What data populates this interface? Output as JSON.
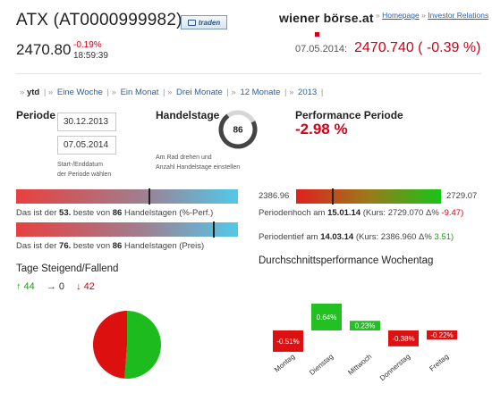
{
  "header": {
    "title": "ATX (AT0000999982)",
    "trade_button": "traden",
    "logo_text": "wiener börse.at",
    "links": {
      "home": "Homepage",
      "sep": "»",
      "ir": "Investor Relations"
    },
    "price": "2470.80",
    "change": "-0.19%",
    "time": "18:59:39",
    "quote_date": "07.05.2014:",
    "quote_value": "2470.740 ( -0.39 %)"
  },
  "tabs": [
    {
      "label": "ytd",
      "active": true
    },
    {
      "label": "Eine Woche"
    },
    {
      "label": "Ein Monat"
    },
    {
      "label": "Drei Monate"
    },
    {
      "label": "12 Monate"
    },
    {
      "label": "2013"
    }
  ],
  "periode": {
    "label": "Periode",
    "start": "30.12.2013",
    "end": "07.05.2014",
    "hint1": "Start-/Enddatum",
    "hint2": "der Periode wählen"
  },
  "handelstage": {
    "label": "Handelstage",
    "value": "86",
    "hint1": "Am Rad drehen und",
    "hint2": "Anzahl Handelstage einstellen"
  },
  "performance": {
    "label": "Performance Periode",
    "value": "-2.98 %"
  },
  "rank_perf": {
    "pre": "Das ist der",
    "rank": "53.",
    "mid": "beste von",
    "total": "86",
    "post": "Handelstagen (%-Perf.)",
    "level": 0.6
  },
  "rank_price": {
    "pre": "Das ist der",
    "rank": "76.",
    "mid": "beste von",
    "total": "86",
    "post": "Handelstagen (Preis)",
    "level": 0.89
  },
  "range": {
    "low": "2386.96",
    "high": "2729.07",
    "level": 0.25,
    "high_pre": "Periodenhoch am",
    "high_date": "15.01.14",
    "high_kurs": "(Kurs: 2729.070 Δ%",
    "high_delta": "-9.47)",
    "low_pre": "Periodentief am",
    "low_date": "14.03.14",
    "low_kurs": "(Kurs: 2386.960 Δ%",
    "low_delta": "3.51)"
  },
  "steigend": {
    "title": "Tage Steigend/Fallend",
    "up": "↑ 44",
    "flat": "→ 0",
    "down": "↓ 42",
    "up_count": 44,
    "down_count": 42,
    "up_color": "#1dbb1d",
    "down_color": "#dd1010"
  },
  "weekday": {
    "title": "Durchschnittsperformance Wochentag"
  },
  "chart_data": {
    "type": "bar",
    "categories": [
      "Montag",
      "Dienstag",
      "Mittwoch",
      "Donnerstag",
      "Freitag"
    ],
    "values": [
      -0.51,
      0.64,
      0.23,
      -0.38,
      -0.22
    ],
    "labels": [
      "-0.51%",
      "0.64%",
      "0.23%",
      "-0.38%",
      "-0.22%"
    ],
    "pos_color": "#22c022",
    "neg_color": "#dd1111"
  }
}
